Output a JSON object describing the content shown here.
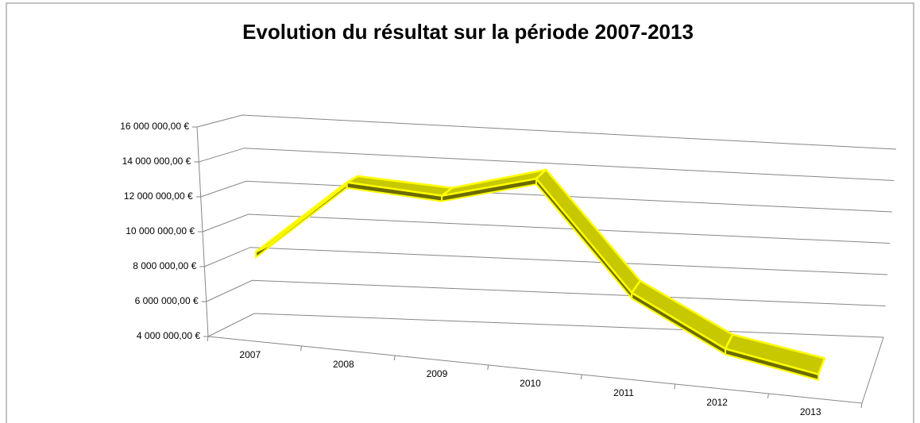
{
  "chart_data": {
    "type": "line3d",
    "title": "Evolution du résultat sur la période 2007-2013",
    "categories": [
      "2007",
      "2008",
      "2009",
      "2010",
      "2011",
      "2012",
      "2013"
    ],
    "values": [
      9000000,
      13600000,
      13400000,
      15000000,
      8800000,
      6000000,
      5000000
    ],
    "color": "#c8c800",
    "ylim": [
      4000000,
      16000000
    ],
    "yticks": [
      {
        "value": 4000000,
        "label": "4 000 000,00 €"
      },
      {
        "value": 6000000,
        "label": "6 000 000,00 €"
      },
      {
        "value": 8000000,
        "label": "8 000 000,00 €"
      },
      {
        "value": 10000000,
        "label": "10 000 000,00 €"
      },
      {
        "value": 12000000,
        "label": "12 000 000,00 €"
      },
      {
        "value": 14000000,
        "label": "14 000 000,00 €"
      },
      {
        "value": 16000000,
        "label": "16 000 000,00 €"
      }
    ],
    "grid": true
  }
}
